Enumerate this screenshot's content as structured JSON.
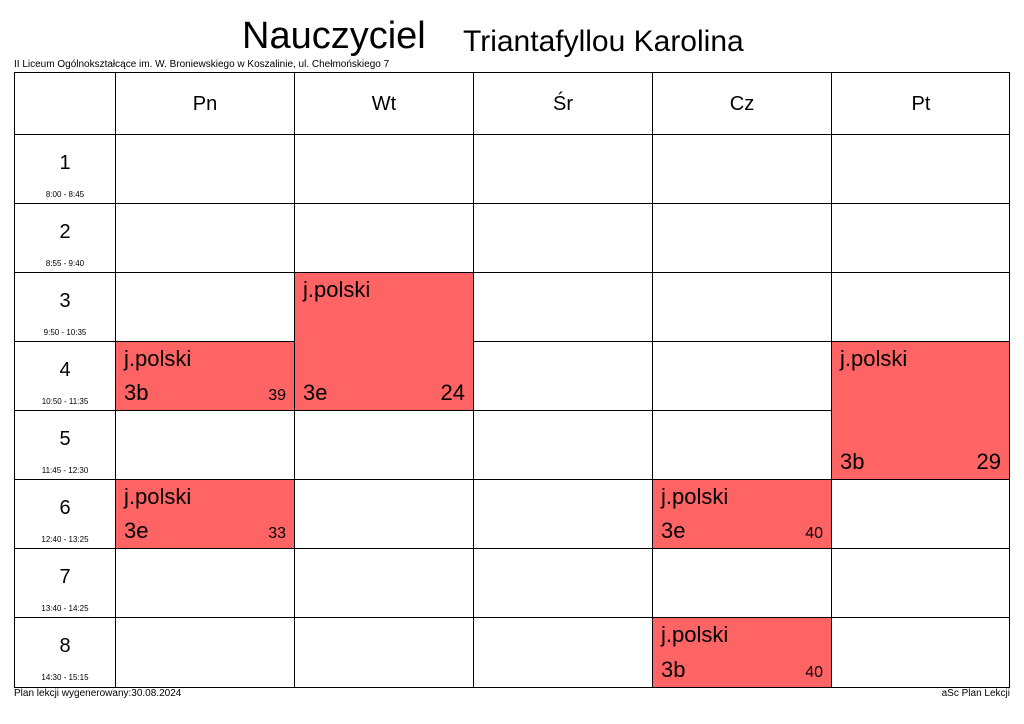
{
  "header": {
    "title": "Nauczyciel",
    "teacher": "Triantafyllou Karolina",
    "school": "II Liceum Ogólnokształcące im. W. Broniewskiego w Koszalinie, ul. Chełmońskiego 7"
  },
  "days": [
    "Pn",
    "Wt",
    "Śr",
    "Cz",
    "Pt"
  ],
  "periods": [
    {
      "num": "1",
      "time": "8:00 - 8:45"
    },
    {
      "num": "2",
      "time": "8:55 - 9:40"
    },
    {
      "num": "3",
      "time": "9:50 - 10:35"
    },
    {
      "num": "4",
      "time": "10:50 - 11:35"
    },
    {
      "num": "5",
      "time": "11:45 - 12:30"
    },
    {
      "num": "6",
      "time": "12:40 - 13:25"
    },
    {
      "num": "7",
      "time": "13:40 - 14:25"
    },
    {
      "num": "8",
      "time": "14:30 - 15:15"
    }
  ],
  "lessons": [
    {
      "day": "Pn",
      "period": "4",
      "subject": "j.polski",
      "class": "3b",
      "room": "39"
    },
    {
      "day": "Wt",
      "period": "3-4",
      "subject": "j.polski",
      "class": "3e",
      "room": "24"
    },
    {
      "day": "Pt",
      "period": "4-5",
      "subject": "j.polski",
      "class": "3b",
      "room": "29"
    },
    {
      "day": "Pn",
      "period": "6",
      "subject": "j.polski",
      "class": "3e",
      "room": "33"
    },
    {
      "day": "Cz",
      "period": "6",
      "subject": "j.polski",
      "class": "3e",
      "room": "40"
    },
    {
      "day": "Cz",
      "period": "8",
      "subject": "j.polski",
      "class": "3b",
      "room": "40"
    }
  ],
  "colors": {
    "lesson": "#ff6464"
  },
  "footer": {
    "generated": "Plan lekcji wygenerowany:30.08.2024",
    "software": "aSc Plan Lekcji"
  }
}
